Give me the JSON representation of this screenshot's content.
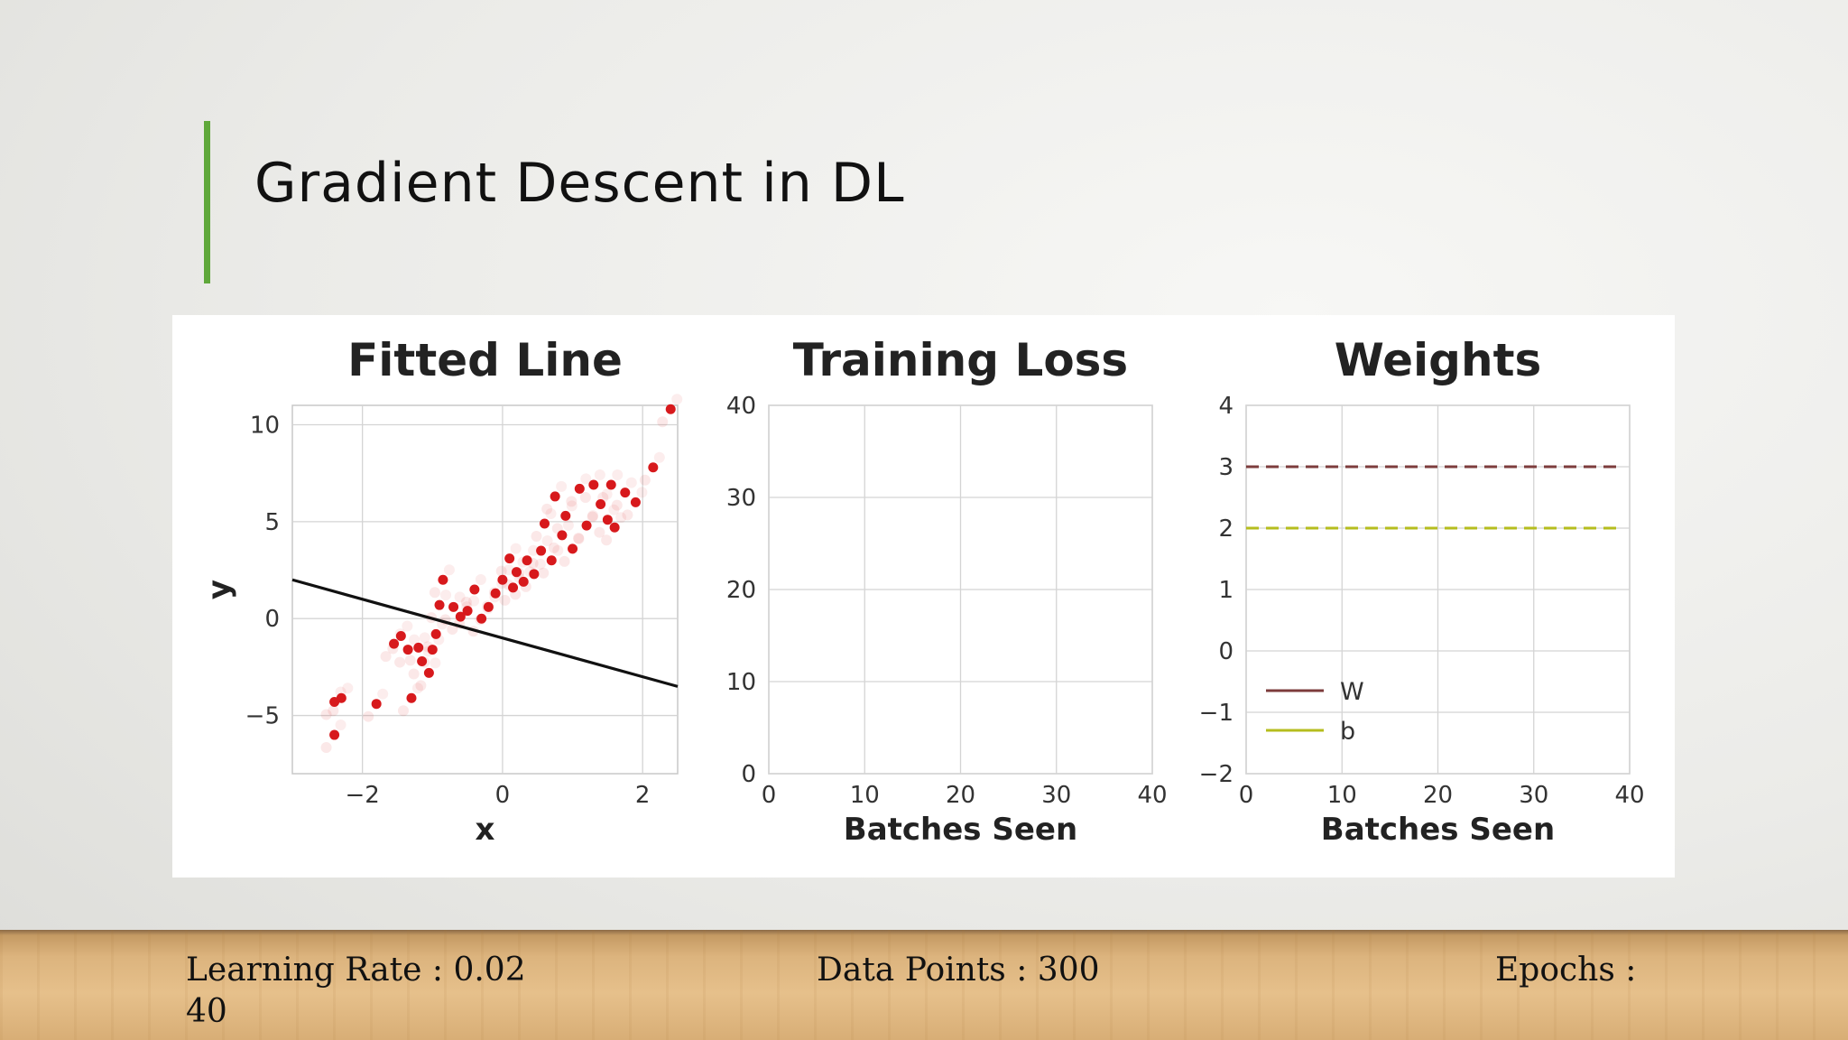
{
  "slide": {
    "title": "Gradient Descent in DL",
    "accent_color": "#5fa83a"
  },
  "footer": {
    "learning_rate_label": "Learning Rate : 0.02",
    "learning_rate_overflow": "40",
    "data_points_label": "Data Points : 300",
    "epochs_label": "Epochs :"
  },
  "chart_data": [
    {
      "type": "scatter",
      "title": "Fitted Line",
      "xlabel": "x",
      "ylabel": "y",
      "xlim": [
        -3.0,
        2.5
      ],
      "ylim": [
        -8,
        11
      ],
      "xticks": [
        -2,
        0,
        2
      ],
      "xtick_labels": [
        "−2",
        "0",
        "2"
      ],
      "yticks": [
        -5,
        0,
        5,
        10
      ],
      "ytick_labels": [
        "−5",
        "0",
        "5",
        "10"
      ],
      "grid": true,
      "point_color": "#d7191c",
      "series": [
        {
          "points": [
            {
              "x": -2.4,
              "y": -4.3
            },
            {
              "x": -2.3,
              "y": -4.1
            },
            {
              "x": -2.4,
              "y": -6.0
            },
            {
              "x": -1.8,
              "y": -4.4
            },
            {
              "x": -1.55,
              "y": -1.3
            },
            {
              "x": -1.45,
              "y": -0.9
            },
            {
              "x": -1.35,
              "y": -1.6
            },
            {
              "x": -1.3,
              "y": -4.1
            },
            {
              "x": -1.2,
              "y": -1.5
            },
            {
              "x": -1.15,
              "y": -2.2
            },
            {
              "x": -1.05,
              "y": -2.8
            },
            {
              "x": -1.0,
              "y": -1.6
            },
            {
              "x": -0.95,
              "y": -0.8
            },
            {
              "x": -0.9,
              "y": 0.7
            },
            {
              "x": -0.85,
              "y": 2.0
            },
            {
              "x": -0.7,
              "y": 0.6
            },
            {
              "x": -0.6,
              "y": 0.1
            },
            {
              "x": -0.5,
              "y": 0.4
            },
            {
              "x": -0.4,
              "y": 1.5
            },
            {
              "x": -0.3,
              "y": 0.0
            },
            {
              "x": -0.2,
              "y": 0.6
            },
            {
              "x": -0.1,
              "y": 1.3
            },
            {
              "x": 0.0,
              "y": 2.0
            },
            {
              "x": 0.1,
              "y": 3.1
            },
            {
              "x": 0.15,
              "y": 1.6
            },
            {
              "x": 0.2,
              "y": 2.4
            },
            {
              "x": 0.3,
              "y": 1.9
            },
            {
              "x": 0.35,
              "y": 3.0
            },
            {
              "x": 0.45,
              "y": 2.3
            },
            {
              "x": 0.55,
              "y": 3.5
            },
            {
              "x": 0.6,
              "y": 4.9
            },
            {
              "x": 0.7,
              "y": 3.0
            },
            {
              "x": 0.75,
              "y": 6.3
            },
            {
              "x": 0.85,
              "y": 4.3
            },
            {
              "x": 0.9,
              "y": 5.3
            },
            {
              "x": 1.0,
              "y": 3.6
            },
            {
              "x": 1.1,
              "y": 6.7
            },
            {
              "x": 1.2,
              "y": 4.8
            },
            {
              "x": 1.3,
              "y": 6.9
            },
            {
              "x": 1.4,
              "y": 5.9
            },
            {
              "x": 1.5,
              "y": 5.1
            },
            {
              "x": 1.55,
              "y": 6.9
            },
            {
              "x": 1.6,
              "y": 4.7
            },
            {
              "x": 1.75,
              "y": 6.5
            },
            {
              "x": 1.9,
              "y": 6.0
            },
            {
              "x": 2.15,
              "y": 7.8
            },
            {
              "x": 2.4,
              "y": 10.8
            }
          ]
        }
      ],
      "fitted_line": {
        "x": [
          -3.0,
          2.5
        ],
        "y": [
          2.0,
          -3.5
        ]
      }
    },
    {
      "type": "line",
      "title": "Training Loss",
      "xlabel": "Batches Seen",
      "ylabel": "",
      "xlim": [
        0,
        40
      ],
      "ylim": [
        0,
        40
      ],
      "xticks": [
        0,
        10,
        20,
        30,
        40
      ],
      "xtick_labels": [
        "0",
        "10",
        "20",
        "30",
        "40"
      ],
      "yticks": [
        0,
        10,
        20,
        30,
        40
      ],
      "ytick_labels": [
        "0",
        "10",
        "20",
        "30",
        "40"
      ],
      "grid": true,
      "series": []
    },
    {
      "type": "line",
      "title": "Weights",
      "xlabel": "Batches Seen",
      "ylabel": "",
      "xlim": [
        0,
        40
      ],
      "ylim": [
        -2,
        4
      ],
      "xticks": [
        0,
        10,
        20,
        30,
        40
      ],
      "xtick_labels": [
        "0",
        "10",
        "20",
        "30",
        "40"
      ],
      "yticks": [
        -2,
        -1,
        0,
        1,
        2,
        3,
        4
      ],
      "ytick_labels": [
        "−2",
        "−1",
        "0",
        "1",
        "2",
        "3",
        "4"
      ],
      "grid": true,
      "legend_position": "lower-left",
      "series": [
        {
          "name": "W",
          "color": "#7d3c3c",
          "style": "dashed",
          "x": [
            0,
            39
          ],
          "y": [
            3,
            3
          ]
        },
        {
          "name": "b",
          "color": "#b5bd1e",
          "style": "dashed",
          "x": [
            0,
            39
          ],
          "y": [
            2,
            2
          ]
        }
      ]
    }
  ]
}
